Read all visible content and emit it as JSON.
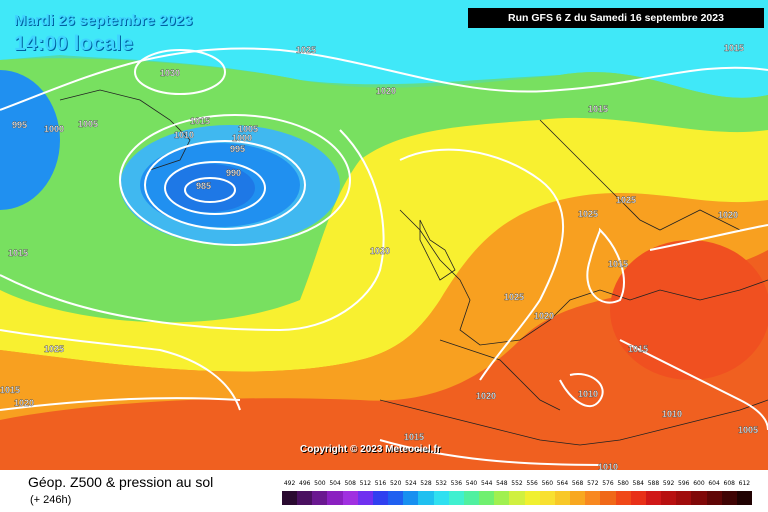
{
  "header": {
    "date": "Mardi 26 septembre 2023",
    "time": "14:00 locale",
    "run": "Run GFS 6 Z du Samedi 16 septembre 2023"
  },
  "copyright": "Copyright © 2023 Meteociel.fr",
  "footer": {
    "title": "Géop. Z500 & pression au sol",
    "subtitle": "(+ 246h)"
  },
  "colors": {
    "low_deep": "#1e78e6",
    "cyan": "#30d8f0",
    "green": "#78e060",
    "yellow": "#f8f030",
    "orange": "#f8a020",
    "red": "#f05020"
  },
  "scale": {
    "values": [
      "492",
      "496",
      "500",
      "504",
      "508",
      "512",
      "516",
      "520",
      "524",
      "528",
      "532",
      "536",
      "540",
      "544",
      "548",
      "552",
      "556",
      "560",
      "564",
      "568",
      "572",
      "576",
      "580",
      "584",
      "588",
      "592",
      "596",
      "600",
      "604",
      "608",
      "612"
    ],
    "colors": [
      "#2a0a30",
      "#4a1060",
      "#6a1890",
      "#8a20c0",
      "#a030e0",
      "#7030f0",
      "#3040f0",
      "#2060f0",
      "#1890f0",
      "#20c0f0",
      "#30e0f0",
      "#40f0d0",
      "#50f0a0",
      "#70f070",
      "#a0f050",
      "#d0f040",
      "#f0f030",
      "#f8e030",
      "#f8c828",
      "#f8a820",
      "#f88820",
      "#f06818",
      "#f04818",
      "#e83018",
      "#d01818",
      "#b81010",
      "#a00c0c",
      "#800808",
      "#600606",
      "#400404",
      "#200202"
    ]
  },
  "isobars": [
    {
      "label": "1030"
    },
    {
      "label": "1025"
    },
    {
      "label": "1020"
    },
    {
      "label": "1015"
    },
    {
      "label": "1015"
    },
    {
      "label": "995"
    },
    {
      "label": "1000"
    },
    {
      "label": "1005"
    },
    {
      "label": "1010"
    },
    {
      "label": "1015"
    },
    {
      "label": "1000"
    },
    {
      "label": "1005"
    },
    {
      "label": "995"
    },
    {
      "label": "990"
    },
    {
      "label": "985"
    },
    {
      "label": "1015"
    },
    {
      "label": "1025"
    },
    {
      "label": "1025"
    },
    {
      "label": "1020"
    },
    {
      "label": "1015"
    },
    {
      "label": "1020"
    },
    {
      "label": "1025"
    },
    {
      "label": "1020"
    },
    {
      "label": "1015"
    },
    {
      "label": "1020"
    },
    {
      "label": "1015"
    },
    {
      "label": "1010"
    },
    {
      "label": "1010"
    },
    {
      "label": "1020"
    },
    {
      "label": "1025"
    },
    {
      "label": "1015"
    },
    {
      "label": "1010"
    },
    {
      "label": "1005"
    },
    {
      "label": "1010"
    },
    {
      "label": "1020"
    }
  ]
}
